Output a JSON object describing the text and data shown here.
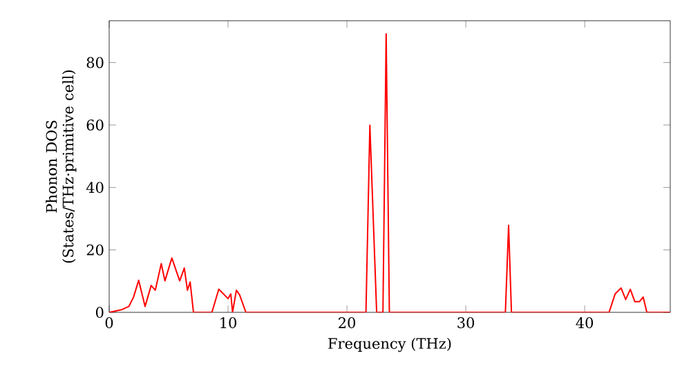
{
  "chart_data": {
    "type": "line",
    "xlabel": "Frequency (THz)",
    "ylabel": "Phonon DOS (States/THz·primitive cell)",
    "xlim": [
      0,
      47.2
    ],
    "ylim": [
      0,
      93.4
    ],
    "xticks": [
      0,
      10,
      20,
      30,
      40
    ],
    "yticks": [
      0,
      20,
      40,
      60,
      80
    ],
    "grid": false,
    "marker": "none",
    "line_style": "solid",
    "series": [
      {
        "color": "#ff0000",
        "x": [
          0,
          1.08,
          1.66,
          2.05,
          2.48,
          3.02,
          3.53,
          3.88,
          4.38,
          4.69,
          5.27,
          5.93,
          6.32,
          6.58,
          6.81,
          7.09,
          8.64,
          9.22,
          10.0,
          10.23,
          10.38,
          10.7,
          10.97,
          11.5,
          21.6,
          21.93,
          22.5,
          23.03,
          23.3,
          23.57,
          33.33,
          33.6,
          33.84,
          42.05,
          42.56,
          43.06,
          43.45,
          43.84,
          44.22,
          44.6,
          44.92,
          45.23,
          47.2
        ],
        "values": [
          0,
          0.9,
          1.9,
          4.9,
          10.3,
          1.9,
          8.6,
          7.1,
          15.6,
          10.1,
          17.4,
          10.1,
          14.2,
          7.1,
          9.7,
          0,
          0,
          7.4,
          4.4,
          5.9,
          0,
          7.1,
          5.6,
          0,
          0,
          59.9,
          0,
          0,
          89.2,
          0,
          0,
          27.9,
          0,
          0,
          5.9,
          7.8,
          4.1,
          7.4,
          3.4,
          3.4,
          4.9,
          0,
          0
        ]
      }
    ]
  }
}
